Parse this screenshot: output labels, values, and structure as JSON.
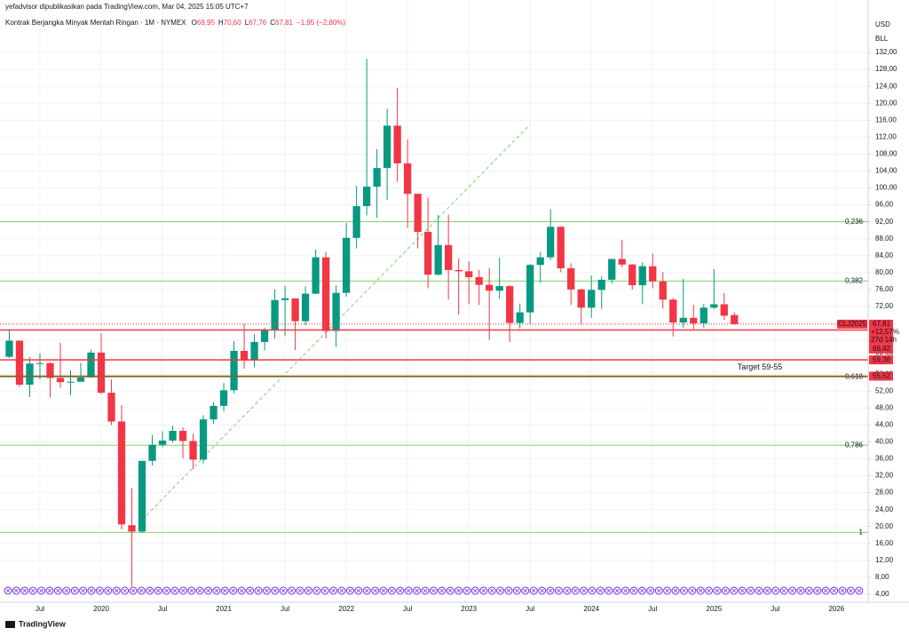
{
  "publisher": "yefadvisor dipublikasikan pada TradingView.com, Mar 04, 2025 15:05 UTC+7",
  "footer": "TradingView",
  "chart_data": {
    "type": "candlestick",
    "title": "Kontrak Berjangka Minyak Mentah Ringan · 1M · NYMEX",
    "ohlc_legend": [
      {
        "key": "O",
        "value": "69,95"
      },
      {
        "key": "H",
        "value": "70,60"
      },
      {
        "key": "L",
        "value": "67,76"
      },
      {
        "key": "C",
        "value": "67,81"
      }
    ],
    "change": "−1,95 (−2,80%)",
    "currency": "USD",
    "unit": "BLL",
    "up_color": "#089981",
    "down_color": "#f23645",
    "open": [
      60.1,
      63.9,
      53.5,
      58.5,
      58.6,
      55.1,
      54.1,
      54.2,
      55.2,
      61.1,
      51.6,
      44.8,
      20.3,
      18.8,
      35.5,
      39.3,
      40.3,
      42.6,
      40.2,
      35.8,
      45.3,
      48.5,
      52.2,
      61.5,
      59.2,
      63.6,
      66.3,
      73.5,
      73.9,
      68.5,
      75.0,
      83.6,
      66.2,
      75.2,
      88.2,
      95.7,
      100.3,
      104.7,
      114.7,
      105.8,
      98.6,
      89.6,
      79.5,
      86.5,
      80.6,
      80.3,
      78.9,
      77.1,
      75.7,
      76.8,
      68.1,
      70.6,
      81.8,
      83.6,
      90.8,
      81.0,
      76.0,
      71.7,
      75.9,
      78.3,
      83.2,
      81.9,
      77.0,
      81.5,
      77.9,
      73.6,
      68.2,
      69.3,
      68.0,
      71.7,
      72.5,
      69.95
    ],
    "high": [
      66.6,
      63.9,
      60.0,
      60.9,
      58.8,
      63.4,
      56.9,
      58.7,
      61.8,
      65.7,
      54.7,
      48.7,
      29.1,
      35.6,
      41.6,
      42.5,
      43.8,
      43.4,
      41.9,
      46.3,
      49.4,
      53.9,
      63.8,
      67.9,
      65.5,
      67.0,
      76.0,
      76.9,
      73.9,
      76.7,
      85.4,
      84.9,
      77.0,
      91.7,
      100.5,
      130.5,
      109.2,
      118.7,
      123.7,
      111.5,
      98.6,
      97.7,
      93.6,
      93.7,
      83.3,
      82.7,
      80.6,
      81.0,
      83.5,
      77.1,
      72.7,
      82.0,
      84.9,
      95.0,
      90.9,
      82.2,
      76.2,
      79.3,
      79.1,
      83.3,
      87.7,
      82.1,
      82.4,
      84.5,
      80.1,
      74.0,
      78.5,
      72.4,
      72.6,
      80.8,
      75.2,
      70.6
    ],
    "low": [
      59.8,
      53.0,
      50.6,
      54.7,
      50.5,
      52.8,
      51.0,
      54.2,
      55.2,
      51.3,
      44.0,
      19.3,
      5.9,
      18.5,
      34.4,
      38.7,
      39.8,
      36.1,
      33.6,
      34.9,
      44.3,
      47.2,
      51.5,
      57.3,
      57.6,
      61.6,
      64.4,
      65.0,
      61.7,
      67.6,
      74.9,
      64.4,
      62.4,
      74.3,
      85.7,
      93.5,
      92.9,
      97.2,
      101.5,
      90.6,
      85.7,
      76.3,
      79.3,
      73.6,
      70.1,
      72.5,
      72.3,
      64.1,
      73.8,
      63.6,
      66.8,
      67.7,
      77.6,
      83.0,
      80.1,
      72.4,
      67.7,
      69.3,
      71.4,
      77.4,
      81.2,
      76.0,
      72.5,
      76.3,
      71.5,
      64.9,
      66.9,
      66.6,
      67.0,
      71.4,
      68.8,
      67.76
    ],
    "close": [
      63.9,
      53.5,
      58.5,
      58.6,
      55.1,
      54.1,
      54.2,
      55.2,
      61.1,
      51.6,
      44.8,
      20.5,
      18.8,
      35.5,
      39.3,
      40.3,
      42.6,
      40.2,
      35.8,
      45.3,
      48.5,
      52.2,
      61.5,
      59.2,
      63.6,
      66.3,
      73.5,
      73.9,
      68.5,
      75.0,
      83.6,
      66.2,
      75.2,
      88.2,
      95.7,
      100.3,
      104.7,
      114.7,
      105.8,
      98.6,
      89.6,
      79.5,
      86.5,
      80.6,
      80.3,
      78.9,
      77.1,
      75.7,
      76.8,
      68.1,
      70.6,
      81.8,
      83.6,
      90.8,
      81.0,
      76.0,
      71.7,
      75.9,
      78.3,
      83.2,
      81.9,
      77.0,
      81.5,
      77.9,
      73.6,
      68.2,
      69.3,
      68.0,
      71.7,
      72.5,
      69.8,
      67.81
    ],
    "xlim": [
      -0.91,
      84.1
    ],
    "xticks": [
      {
        "value": 3,
        "label": "Jul"
      },
      {
        "value": 9,
        "label": "2020"
      },
      {
        "value": 15,
        "label": "Jul"
      },
      {
        "value": 21,
        "label": "2021"
      },
      {
        "value": 27,
        "label": "Jul"
      },
      {
        "value": 33,
        "label": "2022"
      },
      {
        "value": 39,
        "label": "Jul"
      },
      {
        "value": 45,
        "label": "2023"
      },
      {
        "value": 51,
        "label": "Jul"
      },
      {
        "value": 57,
        "label": "2024"
      },
      {
        "value": 63,
        "label": "Jul"
      },
      {
        "value": 69,
        "label": "2025"
      },
      {
        "value": 75,
        "label": "Jul"
      },
      {
        "value": 81,
        "label": "2026"
      }
    ],
    "ylim": [
      2.1,
      144.4
    ],
    "yticks": [
      {
        "value": 4,
        "label": "4,00"
      },
      {
        "value": 8,
        "label": "8,00"
      },
      {
        "value": 12,
        "label": "12,00"
      },
      {
        "value": 16,
        "label": "16,00"
      },
      {
        "value": 20,
        "label": "20,00"
      },
      {
        "value": 24,
        "label": "24,00"
      },
      {
        "value": 28,
        "label": "28,00"
      },
      {
        "value": 32,
        "label": "32,00"
      },
      {
        "value": 36,
        "label": "36,00"
      },
      {
        "value": 40,
        "label": "40,00"
      },
      {
        "value": 44,
        "label": "44,00"
      },
      {
        "value": 48,
        "label": "48,00"
      },
      {
        "value": 52,
        "label": "52,00"
      },
      {
        "value": 56,
        "label": "56,00"
      },
      {
        "value": 60,
        "label": "60,00"
      },
      {
        "value": 64,
        "label": "64,00"
      },
      {
        "value": 68,
        "label": "68,00"
      },
      {
        "value": 72,
        "label": "72,00"
      },
      {
        "value": 76,
        "label": "76,00"
      },
      {
        "value": 80,
        "label": "80,00"
      },
      {
        "value": 84,
        "label": "84,00"
      },
      {
        "value": 88,
        "label": "88,00"
      },
      {
        "value": 92,
        "label": "92,00"
      },
      {
        "value": 96,
        "label": "96,00"
      },
      {
        "value": 100,
        "label": "100,00"
      },
      {
        "value": 104,
        "label": "104,00"
      },
      {
        "value": 108,
        "label": "108,00"
      },
      {
        "value": 112,
        "label": "112,00"
      },
      {
        "value": 116,
        "label": "116,00"
      },
      {
        "value": 120,
        "label": "120,00"
      },
      {
        "value": 124,
        "label": "124,00"
      },
      {
        "value": 128,
        "label": "128,00"
      },
      {
        "value": 132,
        "label": "132,00"
      }
    ],
    "grid": true,
    "fib_levels": [
      {
        "value": 92.0,
        "label": "0,236"
      },
      {
        "value": 78.0,
        "label": "0,382"
      },
      {
        "value": 55.3,
        "label": "0,618"
      },
      {
        "value": 39.2,
        "label": "0,786"
      },
      {
        "value": 18.6,
        "label": "1"
      }
    ],
    "fib_color": "#7fd36a",
    "trendline": {
      "x": [
        13,
        51
      ],
      "y": [
        21.6,
        115
      ],
      "color": "#7fd36a"
    },
    "last_price": {
      "symbol": "CLJ2025",
      "value": 67.81,
      "label": "67,81",
      "change": "+12,57%",
      "countdown": "27d 14h"
    },
    "levels": [
      {
        "value": 66.42,
        "label": "66,42",
        "color": "#f23645",
        "line_color": "#f23645"
      },
      {
        "value": 59.36,
        "label": "59,36",
        "color": "#f23645",
        "line_color": "#f23645"
      },
      {
        "value": 55.52,
        "label": "55,52",
        "color": "#f23645",
        "line_color": "#a0522d"
      }
    ],
    "annotation": {
      "text": "Target 59-55",
      "x": 73.5,
      "y": 57.6,
      "color": "#f23645"
    }
  }
}
